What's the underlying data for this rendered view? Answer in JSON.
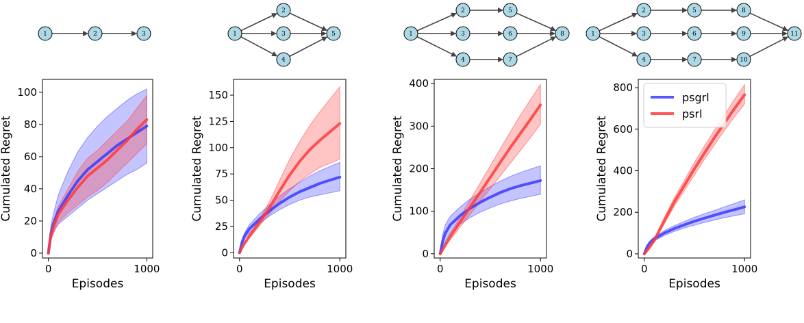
{
  "colors": {
    "psgrl": "#3b3bff",
    "psrl": "#ff3b3b",
    "node_fill": "#add8e6",
    "edge": "#444444"
  },
  "graphs": [
    {
      "nodes": [
        "1",
        "2",
        "3"
      ],
      "edges": [
        [
          "1",
          "2"
        ],
        [
          "2",
          "3"
        ]
      ]
    },
    {
      "nodes": [
        "1",
        "2",
        "3",
        "4",
        "5"
      ],
      "edges": [
        [
          "1",
          "2"
        ],
        [
          "1",
          "3"
        ],
        [
          "1",
          "4"
        ],
        [
          "2",
          "5"
        ],
        [
          "3",
          "5"
        ],
        [
          "4",
          "5"
        ]
      ]
    },
    {
      "nodes": [
        "1",
        "2",
        "3",
        "4",
        "5",
        "6",
        "7",
        "8"
      ],
      "edges": [
        [
          "1",
          "2"
        ],
        [
          "1",
          "3"
        ],
        [
          "1",
          "4"
        ],
        [
          "2",
          "5"
        ],
        [
          "3",
          "6"
        ],
        [
          "4",
          "7"
        ],
        [
          "5",
          "8"
        ],
        [
          "6",
          "8"
        ],
        [
          "7",
          "8"
        ]
      ]
    },
    {
      "nodes": [
        "1",
        "2",
        "3",
        "4",
        "5",
        "6",
        "7",
        "8",
        "9",
        "10",
        "11"
      ],
      "edges": [
        [
          "1",
          "2"
        ],
        [
          "1",
          "3"
        ],
        [
          "1",
          "4"
        ],
        [
          "2",
          "5"
        ],
        [
          "3",
          "6"
        ],
        [
          "4",
          "7"
        ],
        [
          "5",
          "8"
        ],
        [
          "6",
          "9"
        ],
        [
          "7",
          "10"
        ],
        [
          "8",
          "11"
        ],
        [
          "9",
          "11"
        ],
        [
          "10",
          "11"
        ]
      ]
    }
  ],
  "legend": {
    "show_in_panel": 3,
    "placement": "top-left"
  },
  "chart_data": [
    {
      "type": "line",
      "xlabel": "Episodes",
      "ylabel": "Cumulated Regret",
      "xlim": [
        0,
        1000
      ],
      "ylim": [
        -3,
        108
      ],
      "xticks": [
        0,
        1000
      ],
      "yticks": [
        0,
        20,
        40,
        60,
        80,
        100
      ],
      "series": [
        {
          "name": "psgrl",
          "x": [
            0,
            25,
            50,
            100,
            200,
            300,
            400,
            500,
            600,
            700,
            800,
            900,
            1000
          ],
          "y": [
            0,
            12,
            18,
            26,
            36,
            45,
            52,
            57,
            62,
            67,
            71,
            75,
            79
          ],
          "lower": [
            0,
            8,
            13,
            18,
            23,
            28,
            33,
            37,
            41,
            45,
            49,
            52,
            56
          ],
          "upper": [
            0,
            17,
            24,
            36,
            51,
            63,
            72,
            79,
            85,
            90,
            95,
            99,
            102
          ]
        },
        {
          "name": "psrl",
          "x": [
            0,
            25,
            50,
            100,
            200,
            300,
            400,
            500,
            600,
            700,
            800,
            900,
            1000
          ],
          "y": [
            0,
            11,
            16,
            24,
            33,
            41,
            48,
            53,
            58,
            64,
            70,
            77,
            83
          ],
          "lower": [
            0,
            8,
            12,
            19,
            25,
            30,
            35,
            39,
            44,
            50,
            56,
            62,
            68
          ],
          "upper": [
            0,
            14,
            20,
            29,
            40,
            51,
            59,
            64,
            70,
            76,
            82,
            90,
            98
          ]
        }
      ]
    },
    {
      "type": "line",
      "xlabel": "Episodes",
      "ylabel": "Cumulated Regret",
      "xlim": [
        0,
        1000
      ],
      "ylim": [
        -5,
        165
      ],
      "xticks": [
        0,
        1000
      ],
      "yticks": [
        0,
        25,
        50,
        75,
        100,
        125,
        150
      ],
      "series": [
        {
          "name": "psgrl",
          "x": [
            0,
            25,
            50,
            100,
            200,
            300,
            400,
            500,
            600,
            700,
            800,
            900,
            1000
          ],
          "y": [
            0,
            10,
            16,
            23,
            32,
            40,
            47,
            53,
            58,
            62,
            66,
            69,
            72
          ],
          "lower": [
            0,
            8,
            13,
            19,
            28,
            35,
            41,
            46,
            50,
            53,
            55,
            57,
            59
          ],
          "upper": [
            0,
            12,
            19,
            27,
            37,
            46,
            54,
            61,
            67,
            73,
            78,
            82,
            86
          ]
        },
        {
          "name": "psrl",
          "x": [
            0,
            25,
            50,
            100,
            200,
            300,
            400,
            500,
            600,
            700,
            800,
            900,
            1000
          ],
          "y": [
            0,
            5,
            9,
            16,
            29,
            43,
            59,
            74,
            87,
            98,
            107,
            115,
            123
          ],
          "lower": [
            0,
            4,
            8,
            14,
            26,
            37,
            49,
            59,
            68,
            75,
            81,
            85,
            89
          ],
          "upper": [
            0,
            6,
            10,
            18,
            32,
            49,
            69,
            89,
            106,
            121,
            134,
            146,
            158
          ]
        }
      ]
    },
    {
      "type": "line",
      "xlabel": "Episodes",
      "ylabel": "Cumulated Regret",
      "xlim": [
        0,
        1000
      ],
      "ylim": [
        -10,
        410
      ],
      "xticks": [
        0,
        1000
      ],
      "yticks": [
        0,
        100,
        200,
        300,
        400
      ],
      "series": [
        {
          "name": "psgrl",
          "x": [
            0,
            25,
            50,
            100,
            200,
            300,
            400,
            500,
            600,
            700,
            800,
            900,
            1000
          ],
          "y": [
            0,
            30,
            48,
            68,
            90,
            107,
            121,
            133,
            144,
            153,
            160,
            166,
            172
          ],
          "lower": [
            0,
            15,
            28,
            48,
            70,
            85,
            98,
            108,
            117,
            124,
            130,
            135,
            140
          ],
          "upper": [
            0,
            45,
            68,
            88,
            110,
            129,
            144,
            158,
            171,
            182,
            191,
            199,
            207
          ]
        },
        {
          "name": "psrl",
          "x": [
            0,
            25,
            50,
            100,
            200,
            300,
            400,
            500,
            600,
            700,
            800,
            900,
            1000
          ],
          "y": [
            0,
            10,
            20,
            40,
            75,
            110,
            145,
            180,
            215,
            250,
            283,
            316,
            350
          ],
          "lower": [
            0,
            8,
            16,
            33,
            63,
            93,
            123,
            153,
            183,
            213,
            243,
            273,
            305
          ],
          "upper": [
            0,
            12,
            24,
            47,
            87,
            127,
            167,
            207,
            247,
            287,
            326,
            362,
            398
          ]
        }
      ]
    },
    {
      "type": "line",
      "xlabel": "Episodes",
      "ylabel": "Cumulated Regret",
      "xlim": [
        0,
        1000
      ],
      "ylim": [
        -20,
        840
      ],
      "xticks": [
        0,
        1000
      ],
      "yticks": [
        0,
        200,
        400,
        600,
        800
      ],
      "series": [
        {
          "name": "psgrl",
          "x": [
            0,
            25,
            50,
            100,
            200,
            300,
            400,
            500,
            600,
            700,
            800,
            900,
            1000
          ],
          "y": [
            0,
            30,
            50,
            72,
            100,
            122,
            140,
            157,
            172,
            186,
            200,
            213,
            226
          ],
          "lower": [
            0,
            22,
            40,
            62,
            88,
            108,
            124,
            138,
            151,
            163,
            174,
            184,
            193
          ],
          "upper": [
            0,
            38,
            60,
            82,
            112,
            136,
            156,
            176,
            193,
            209,
            226,
            243,
            260
          ]
        },
        {
          "name": "psrl",
          "x": [
            0,
            25,
            50,
            100,
            200,
            300,
            400,
            500,
            600,
            700,
            800,
            900,
            1000
          ],
          "y": [
            0,
            15,
            30,
            65,
            160,
            250,
            330,
            410,
            485,
            560,
            630,
            700,
            766
          ],
          "lower": [
            0,
            13,
            27,
            58,
            145,
            230,
            305,
            380,
            455,
            525,
            595,
            660,
            722
          ],
          "upper": [
            0,
            17,
            33,
            72,
            175,
            270,
            355,
            440,
            520,
            595,
            670,
            745,
            815
          ]
        }
      ]
    }
  ]
}
